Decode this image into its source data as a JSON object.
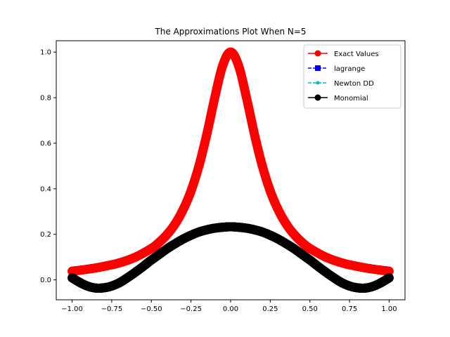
{
  "chart_data": {
    "type": "line",
    "title": "The Approximations Plot When N=5",
    "xlabel": "",
    "ylabel": "",
    "xlim": [
      -1.1,
      1.1
    ],
    "ylim": [
      -0.0875,
      1.05
    ],
    "xticks": [
      -1.0,
      -0.75,
      -0.5,
      -0.25,
      0.0,
      0.25,
      0.5,
      0.75,
      1.0
    ],
    "xtick_labels": [
      "−1.00",
      "−0.75",
      "−0.50",
      "−0.25",
      "0.00",
      "0.25",
      "0.50",
      "0.75",
      "1.00"
    ],
    "yticks": [
      0.0,
      0.2,
      0.4,
      0.6,
      0.8,
      1.0
    ],
    "ytick_labels": [
      "0.0",
      "0.2",
      "0.4",
      "0.6",
      "0.8",
      "1.0"
    ],
    "grid": false,
    "legend_position": "top-right",
    "series": [
      {
        "name": "Exact Values",
        "color": "#ff0000",
        "marker": "circle",
        "linestyle": "solid",
        "x": [
          -1.0,
          -0.9,
          -0.8,
          -0.7,
          -0.6,
          -0.5,
          -0.45,
          -0.4,
          -0.35,
          -0.3,
          -0.25,
          -0.2,
          -0.15,
          -0.1,
          -0.05,
          0.0,
          0.05,
          0.1,
          0.15,
          0.2,
          0.25,
          0.3,
          0.35,
          0.4,
          0.45,
          0.5,
          0.6,
          0.7,
          0.8,
          0.9,
          1.0
        ],
        "values": [
          0.038,
          0.047,
          0.059,
          0.075,
          0.1,
          0.138,
          0.165,
          0.2,
          0.246,
          0.308,
          0.39,
          0.5,
          0.64,
          0.8,
          0.941,
          1.0,
          0.941,
          0.8,
          0.64,
          0.5,
          0.39,
          0.308,
          0.246,
          0.2,
          0.165,
          0.138,
          0.1,
          0.075,
          0.059,
          0.047,
          0.038
        ]
      },
      {
        "name": "lagrange",
        "color": "#0000ff",
        "marker": "square",
        "linestyle": "dashed",
        "x": [
          -1.0,
          -0.95,
          -0.9,
          -0.85,
          -0.8,
          -0.75,
          -0.7,
          -0.65,
          -0.6,
          -0.55,
          -0.5,
          -0.45,
          -0.4,
          -0.35,
          -0.3,
          -0.25,
          -0.2,
          -0.15,
          -0.1,
          -0.05,
          0.0,
          0.05,
          0.1,
          0.15,
          0.2,
          0.25,
          0.3,
          0.35,
          0.4,
          0.45,
          0.5,
          0.55,
          0.6,
          0.65,
          0.7,
          0.75,
          0.8,
          0.85,
          0.9,
          0.95,
          1.0
        ],
        "values": [
          0.009,
          -0.012,
          -0.028,
          -0.036,
          -0.035,
          -0.027,
          -0.012,
          0.01,
          0.034,
          0.06,
          0.087,
          0.112,
          0.137,
          0.159,
          0.179,
          0.196,
          0.21,
          0.22,
          0.227,
          0.231,
          0.233,
          0.231,
          0.227,
          0.22,
          0.21,
          0.196,
          0.179,
          0.159,
          0.137,
          0.112,
          0.087,
          0.06,
          0.034,
          0.01,
          -0.012,
          -0.027,
          -0.035,
          -0.036,
          -0.028,
          -0.012,
          0.009
        ]
      },
      {
        "name": "Newton DD",
        "color": "#00bfbf",
        "marker": "dot",
        "linestyle": "dashed",
        "x": [
          -1.0,
          -0.95,
          -0.9,
          -0.85,
          -0.8,
          -0.75,
          -0.7,
          -0.65,
          -0.6,
          -0.55,
          -0.5,
          -0.45,
          -0.4,
          -0.35,
          -0.3,
          -0.25,
          -0.2,
          -0.15,
          -0.1,
          -0.05,
          0.0,
          0.05,
          0.1,
          0.15,
          0.2,
          0.25,
          0.3,
          0.35,
          0.4,
          0.45,
          0.5,
          0.55,
          0.6,
          0.65,
          0.7,
          0.75,
          0.8,
          0.85,
          0.9,
          0.95,
          1.0
        ],
        "values": [
          0.009,
          -0.012,
          -0.028,
          -0.036,
          -0.035,
          -0.027,
          -0.012,
          0.01,
          0.034,
          0.06,
          0.087,
          0.112,
          0.137,
          0.159,
          0.179,
          0.196,
          0.21,
          0.22,
          0.227,
          0.231,
          0.233,
          0.231,
          0.227,
          0.22,
          0.21,
          0.196,
          0.179,
          0.159,
          0.137,
          0.112,
          0.087,
          0.06,
          0.034,
          0.01,
          -0.012,
          -0.027,
          -0.035,
          -0.036,
          -0.028,
          -0.012,
          0.009
        ]
      },
      {
        "name": "Monomial",
        "color": "#000000",
        "marker": "circle",
        "linestyle": "solid",
        "x": [
          -1.0,
          -0.95,
          -0.9,
          -0.85,
          -0.8,
          -0.75,
          -0.7,
          -0.65,
          -0.6,
          -0.55,
          -0.5,
          -0.45,
          -0.4,
          -0.35,
          -0.3,
          -0.25,
          -0.2,
          -0.15,
          -0.1,
          -0.05,
          0.0,
          0.05,
          0.1,
          0.15,
          0.2,
          0.25,
          0.3,
          0.35,
          0.4,
          0.45,
          0.5,
          0.55,
          0.6,
          0.65,
          0.7,
          0.75,
          0.8,
          0.85,
          0.9,
          0.95,
          1.0
        ],
        "values": [
          0.009,
          -0.012,
          -0.028,
          -0.036,
          -0.035,
          -0.027,
          -0.012,
          0.01,
          0.034,
          0.06,
          0.087,
          0.112,
          0.137,
          0.159,
          0.179,
          0.196,
          0.21,
          0.22,
          0.227,
          0.231,
          0.233,
          0.231,
          0.227,
          0.22,
          0.21,
          0.196,
          0.179,
          0.159,
          0.137,
          0.112,
          0.087,
          0.06,
          0.034,
          0.01,
          -0.012,
          -0.027,
          -0.035,
          -0.036,
          -0.028,
          -0.012,
          0.009
        ]
      }
    ]
  }
}
